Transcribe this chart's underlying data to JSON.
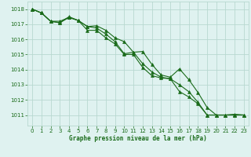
{
  "title": "Graphe pression niveau de la mer (hPa)",
  "background_color": "#dff2f0",
  "plot_bg_color": "#dff2f0",
  "grid_color": "#b8d8d0",
  "line_color": "#1a6b1a",
  "marker_color": "#1a6b1a",
  "x_ticks": [
    0,
    1,
    2,
    3,
    4,
    5,
    6,
    7,
    8,
    9,
    10,
    11,
    12,
    13,
    14,
    15,
    16,
    17,
    18,
    19,
    20,
    21,
    22,
    23
  ],
  "y_ticks": [
    1011,
    1012,
    1013,
    1014,
    1015,
    1016,
    1017,
    1018
  ],
  "ylim": [
    1010.3,
    1018.5
  ],
  "xlim": [
    -0.5,
    23.5
  ],
  "series": [
    [
      1018.0,
      1017.75,
      1017.2,
      1017.1,
      1017.5,
      1017.25,
      1016.85,
      1016.9,
      1016.6,
      1016.1,
      1015.85,
      1015.15,
      1015.2,
      1014.35,
      1013.65,
      1013.5,
      1014.05,
      1013.35,
      1012.5,
      1011.5,
      1011.0,
      1011.0,
      1011.05,
      1011.0
    ],
    [
      1018.0,
      1017.75,
      1017.2,
      1017.2,
      1017.45,
      1017.25,
      1016.85,
      1016.75,
      1016.35,
      1015.85,
      1015.05,
      1015.15,
      1014.4,
      1013.85,
      1013.5,
      1013.4,
      1013.0,
      1012.55,
      1011.85,
      1011.0,
      1011.0,
      1011.0,
      1011.0,
      1011.0
    ],
    [
      1018.0,
      1017.75,
      1017.2,
      1017.1,
      1017.45,
      1017.25,
      1016.6,
      1016.6,
      1016.1,
      1015.7,
      1015.0,
      1015.0,
      1014.15,
      1013.6,
      1013.45,
      1013.4,
      1012.55,
      1012.2,
      1011.75,
      1011.0,
      1011.0,
      1011.0,
      1011.0,
      1011.0
    ]
  ]
}
